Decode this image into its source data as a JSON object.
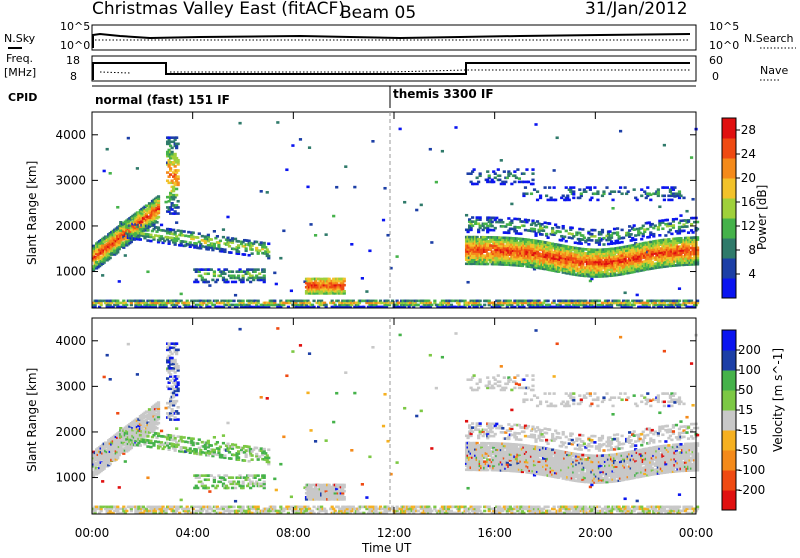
{
  "header": {
    "radar": "Christmas Valley East (fitACF)",
    "beam": "Beam 05",
    "date": "31/Jan/2012"
  },
  "panels": {
    "nsky_label": "N.Sky",
    "nsearch_label": "N.Search",
    "nsky_ticks": [
      "10^5",
      "10^0"
    ],
    "freq_label_1": "Freq.",
    "freq_label_2": "[MHz]",
    "freq_ticks": [
      "18",
      "8"
    ],
    "nave_label": "Nave",
    "nave_ticks": [
      "60",
      "0"
    ],
    "cpid_label": "CPID",
    "cpid_segments": [
      "normal (fast) 151 IF",
      "themis 3300 IF"
    ]
  },
  "colors": {
    "power": [
      "#0a14f0",
      "#1c3fa6",
      "#2f7a6a",
      "#45b24a",
      "#9fd03a",
      "#f2c22a",
      "#f48a1a",
      "#ef4a12",
      "#e01010"
    ],
    "velocity": [
      "#e01010",
      "#ef4a12",
      "#f48a1a",
      "#f5b020",
      "#c8c8c8",
      "#7cc844",
      "#45b24a",
      "#1c3fa6",
      "#0a14f0"
    ]
  },
  "chart_data": [
    {
      "type": "heatmap",
      "title": "Power",
      "ylabel": "Slant Range [km]",
      "yticks": [
        1000,
        2000,
        3000,
        4000
      ],
      "ylim": [
        200,
        4500
      ],
      "colorbar_label": "Power [dB]",
      "colorbar_ticks": [
        4,
        8,
        12,
        16,
        20,
        24,
        28
      ],
      "colorbar_range": [
        0,
        30
      ],
      "echo_bands": [
        {
          "t": [
            0.0,
            2.2
          ],
          "r": [
            1500,
            2400
          ],
          "level": "high"
        },
        {
          "t": [
            1.0,
            7.0
          ],
          "r": [
            1400,
            2000
          ],
          "level": "mid"
        },
        {
          "t": [
            8.5,
            9.8
          ],
          "r": [
            550,
            850
          ],
          "level": "high"
        },
        {
          "t": [
            14.8,
            24.0
          ],
          "r": [
            1000,
            2100
          ],
          "level": "high"
        },
        {
          "t": [
            0.0,
            24.0
          ],
          "r": [
            250,
            400
          ],
          "level": "ground"
        }
      ]
    },
    {
      "type": "heatmap",
      "title": "Velocity",
      "ylabel": "Slant Range [km]",
      "xlabel": "Time UT",
      "xticks": [
        "00:00",
        "04:00",
        "08:00",
        "12:00",
        "16:00",
        "20:00",
        "00:00"
      ],
      "yticks": [
        1000,
        2000,
        3000,
        4000
      ],
      "ylim": [
        200,
        4500
      ],
      "colorbar_label": "Velocity [m s^-1]",
      "colorbar_ticks": [
        200,
        100,
        50,
        15,
        -15,
        -50,
        -100,
        -200
      ],
      "colorbar_range": [
        -250,
        250
      ]
    }
  ]
}
